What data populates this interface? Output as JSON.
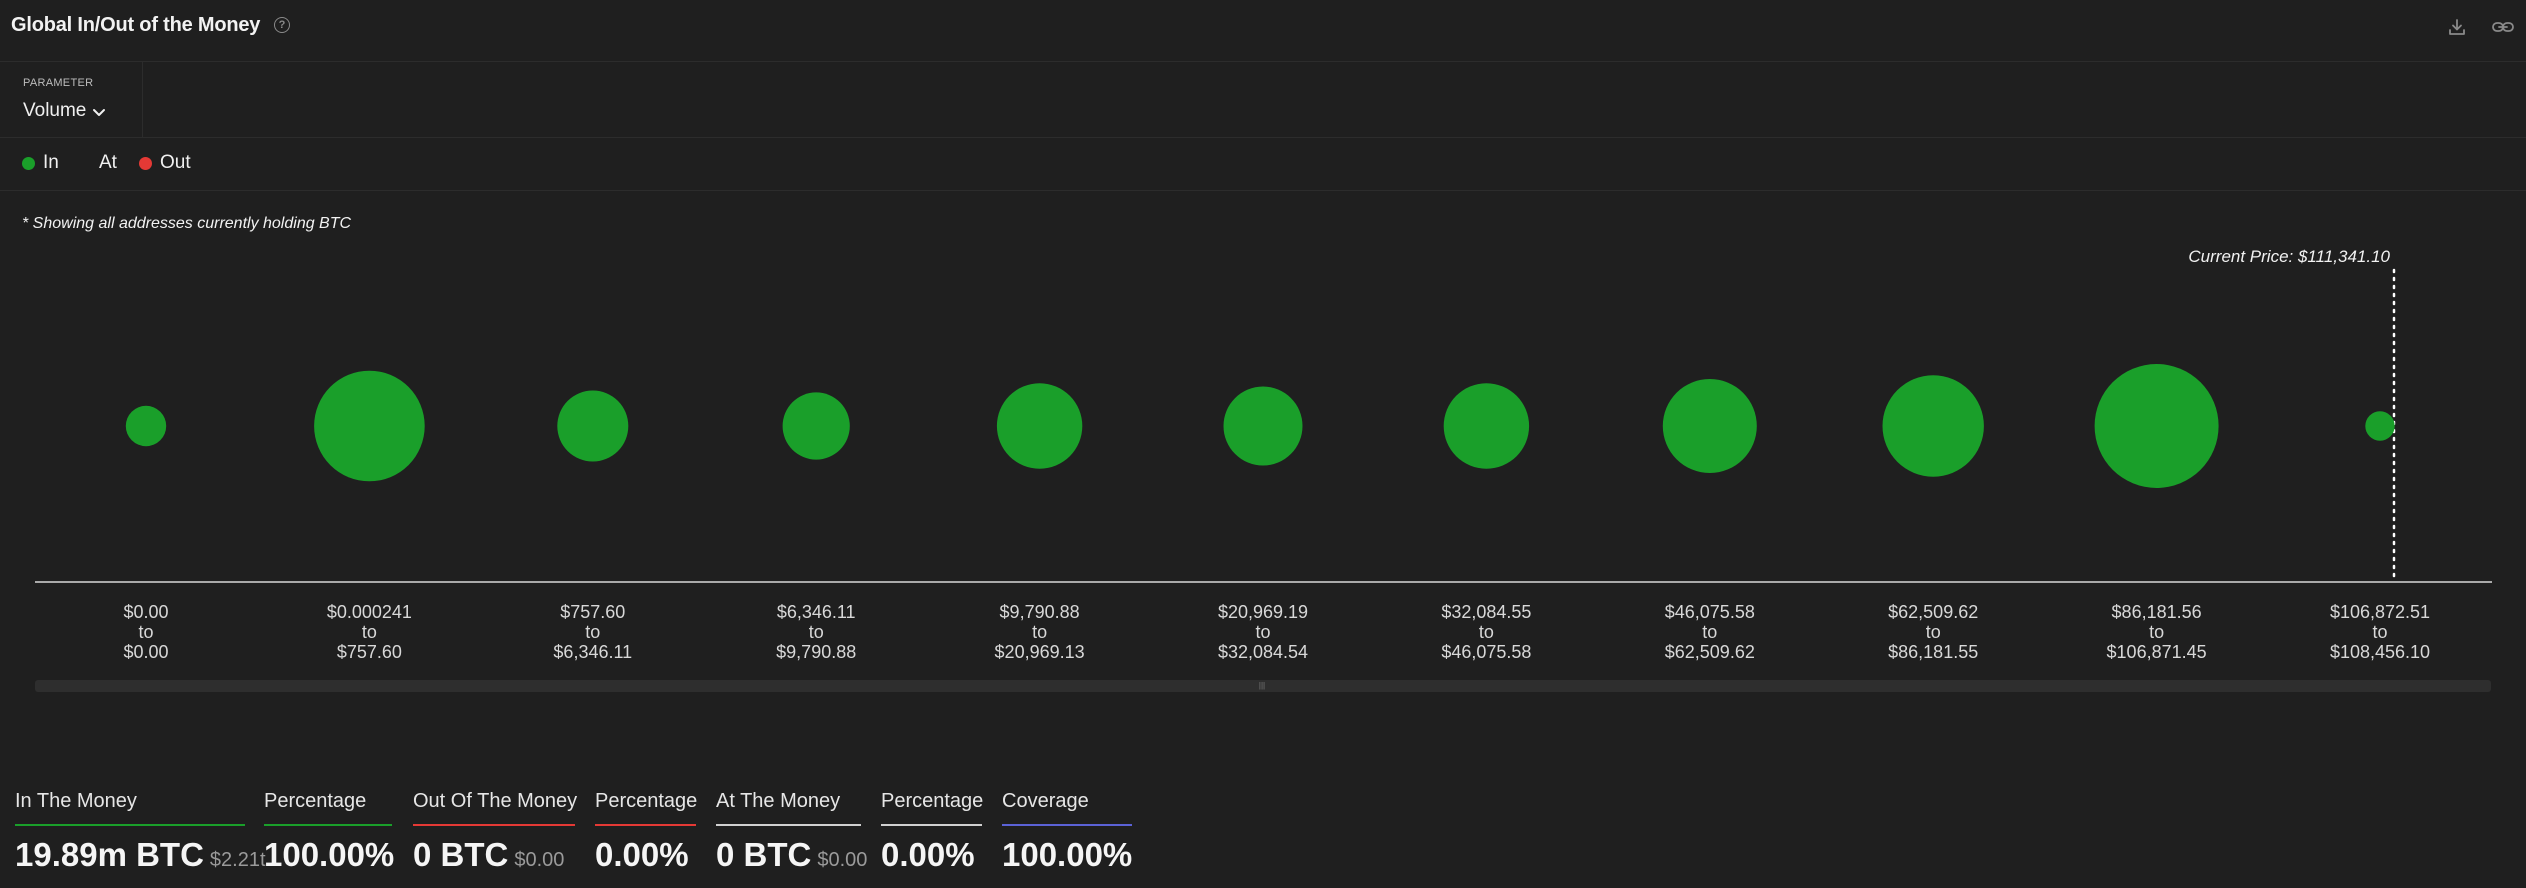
{
  "header": {
    "title": "Global In/Out of the Money",
    "help_icon": "help-circle-icon",
    "download_icon": "download-icon",
    "link_icon": "link-icon"
  },
  "parameter": {
    "label": "PARAMETER",
    "value": "Volume",
    "icon": "chevron-down-icon"
  },
  "legend": [
    {
      "label": "In",
      "color": "#1a9f2a"
    },
    {
      "label": "At",
      "color": ""
    },
    {
      "label": "Out",
      "color": "#e53935"
    }
  ],
  "note": "* Showing all addresses currently holding BTC",
  "colors": {
    "in": "#1a9f2a",
    "out": "#e53935",
    "coverage": "#5b62d6",
    "neutral": "#d0d0d0"
  },
  "chart_data": {
    "type": "bubble",
    "current_price_label": "Current Price: $111,341.10",
    "current_price": 111341.1,
    "buckets": [
      {
        "from": "$0.00",
        "sep": "to",
        "to": "$0.00",
        "size": 0.034,
        "status": "in"
      },
      {
        "from": "$0.000241",
        "sep": "to",
        "to": "$757.60",
        "size": 0.255,
        "status": "in"
      },
      {
        "from": "$757.60",
        "sep": "to",
        "to": "$6,346.11",
        "size": 0.105,
        "status": "in"
      },
      {
        "from": "$6,346.11",
        "sep": "to",
        "to": "$9,790.88",
        "size": 0.094,
        "status": "in"
      },
      {
        "from": "$9,790.88",
        "sep": "to",
        "to": "$20,969.13",
        "size": 0.152,
        "status": "in"
      },
      {
        "from": "$20,969.19",
        "sep": "to",
        "to": "$32,084.54",
        "size": 0.13,
        "status": "in"
      },
      {
        "from": "$32,084.55",
        "sep": "to",
        "to": "$46,075.58",
        "size": 0.152,
        "status": "in"
      },
      {
        "from": "$46,075.58",
        "sep": "to",
        "to": "$62,509.62",
        "size": 0.184,
        "status": "in"
      },
      {
        "from": "$62,509.62",
        "sep": "to",
        "to": "$86,181.55",
        "size": 0.214,
        "status": "in"
      },
      {
        "from": "$86,181.56",
        "sep": "to",
        "to": "$106,871.45",
        "size": 0.32,
        "status": "in"
      },
      {
        "from": "$106,872.51",
        "sep": "to",
        "to": "$108,456.10",
        "size": 0.018,
        "status": "in"
      }
    ]
  },
  "stats": [
    {
      "label": "In The Money",
      "value": "19.89m BTC",
      "sub": "$2.21t",
      "color": "#1a9f2a"
    },
    {
      "label": "Percentage",
      "value": "100.00%",
      "sub": "",
      "color": "#1a9f2a"
    },
    {
      "label": "Out Of The Money",
      "value": "0 BTC",
      "sub": "$0.00",
      "color": "#e53935"
    },
    {
      "label": "Percentage",
      "value": "0.00%",
      "sub": "",
      "color": "#e53935"
    },
    {
      "label": "At The Money",
      "value": "0 BTC",
      "sub": "$0.00",
      "color": "#d0d0d0"
    },
    {
      "label": "Percentage",
      "value": "0.00%",
      "sub": "",
      "color": "#d0d0d0"
    },
    {
      "label": "Coverage",
      "value": "100.00%",
      "sub": "",
      "color": "#5b62d6"
    }
  ]
}
